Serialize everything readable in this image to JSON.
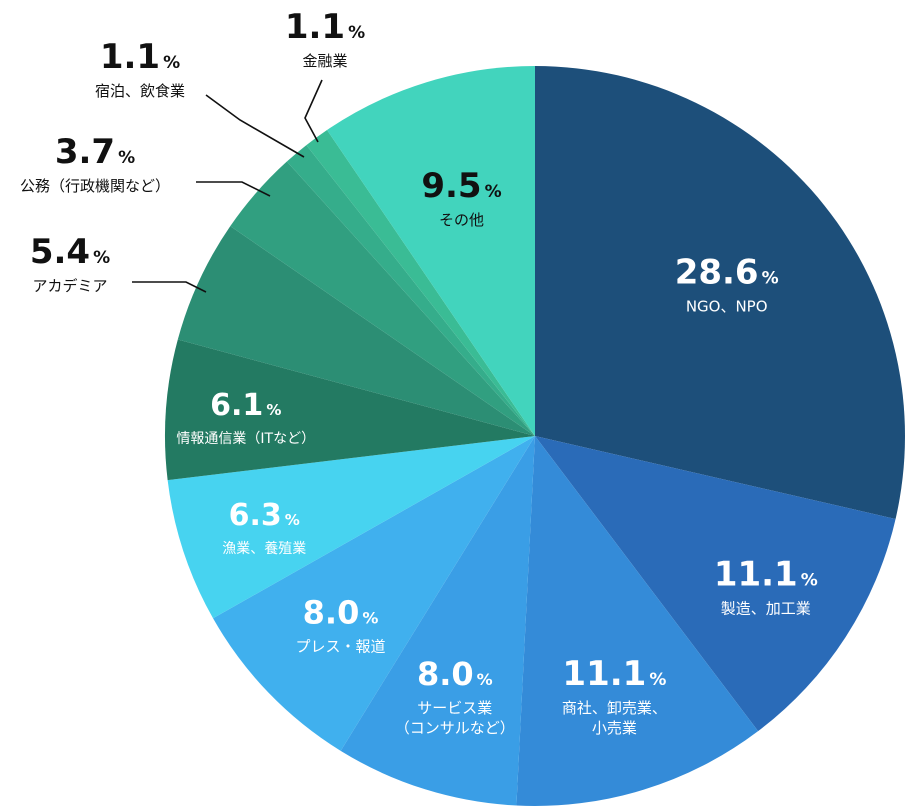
{
  "chart_data": {
    "type": "pie",
    "unit": "%",
    "slices": [
      {
        "label": "NGO、NPO",
        "value": 28.6,
        "value_text": "28.6",
        "color": "#1d4f7a"
      },
      {
        "label": "製造、加工業",
        "value": 11.1,
        "value_text": "11.1",
        "color": "#2a6bb8"
      },
      {
        "label": "商社、卸売業、小売業",
        "label_lines": [
          "商社、卸売業、",
          "小売業"
        ],
        "value": 11.1,
        "value_text": "11.1",
        "color": "#348bd8"
      },
      {
        "label": "サービス業（コンサルなど）",
        "label_lines": [
          "サービス業",
          "（コンサルなど）"
        ],
        "value": 8.0,
        "value_text": "8.0",
        "color": "#3a9ee6"
      },
      {
        "label": "プレス・報道",
        "value": 8.0,
        "value_text": "8.0",
        "color": "#40b0ee"
      },
      {
        "label": "漁業、養殖業",
        "value": 6.3,
        "value_text": "6.3",
        "color": "#47d3f0"
      },
      {
        "label": "情報通信業（ITなど）",
        "value": 6.1,
        "value_text": "6.1",
        "color": "#237a62"
      },
      {
        "label": "アカデミア",
        "value": 5.4,
        "value_text": "5.4",
        "color": "#2c8e74"
      },
      {
        "label": "公務（行政機関など）",
        "value": 3.7,
        "value_text": "3.7",
        "color": "#319f80"
      },
      {
        "label": "宿泊、飲食業",
        "value": 1.1,
        "value_text": "1.1",
        "color": "#35ad8b"
      },
      {
        "label": "金融業",
        "value": 1.1,
        "value_text": "1.1",
        "color": "#3abc95"
      },
      {
        "label": "その他",
        "value": 9.5,
        "value_text": "9.5",
        "color": "#42d4bd"
      }
    ]
  }
}
